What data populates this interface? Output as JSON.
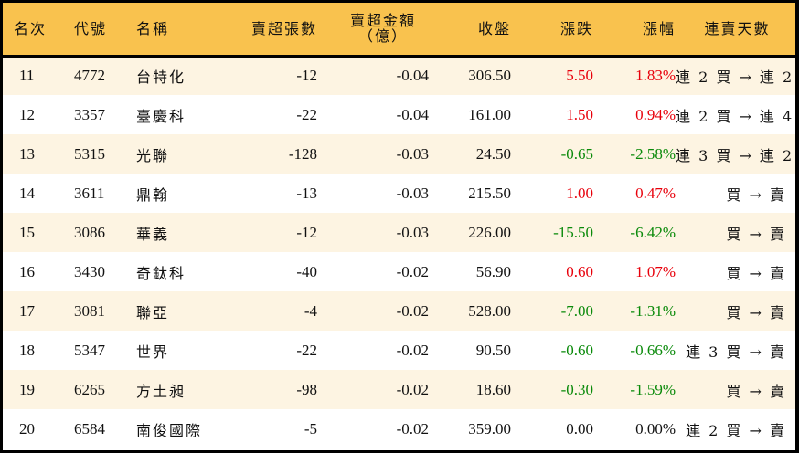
{
  "table": {
    "headers": {
      "rank": "名次",
      "code": "代號",
      "name": "名稱",
      "sell_volume": "賣超張數",
      "sell_amount_line1": "賣超金額",
      "sell_amount_line2": "（億）",
      "close": "收盤",
      "change": "漲跌",
      "change_pct": "漲幅",
      "streak": "連賣天數"
    },
    "colors": {
      "header_bg": "#F9C24E",
      "row_alt_bg": "#FDF4E2",
      "row_bg": "#FFFFFF",
      "up": "#E8000B",
      "down": "#0A8A0A",
      "border": "#000000"
    },
    "rows": [
      {
        "rank": "11",
        "code": "4772",
        "name": "台特化",
        "sell_volume": "-12",
        "sell_amount": "-0.04",
        "close": "306.50",
        "change": "5.50",
        "change_pct": "1.83%",
        "direction": "up",
        "streak": "連 2 買 → 連 2 賣"
      },
      {
        "rank": "12",
        "code": "3357",
        "name": "臺慶科",
        "sell_volume": "-22",
        "sell_amount": "-0.04",
        "close": "161.00",
        "change": "1.50",
        "change_pct": "0.94%",
        "direction": "up",
        "streak": "連 2 買 → 連 4 賣"
      },
      {
        "rank": "13",
        "code": "5315",
        "name": "光聯",
        "sell_volume": "-128",
        "sell_amount": "-0.03",
        "close": "24.50",
        "change": "-0.65",
        "change_pct": "-2.58%",
        "direction": "down",
        "streak": "連 3 買 → 連 2 賣"
      },
      {
        "rank": "14",
        "code": "3611",
        "name": "鼎翰",
        "sell_volume": "-13",
        "sell_amount": "-0.03",
        "close": "215.50",
        "change": "1.00",
        "change_pct": "0.47%",
        "direction": "up",
        "streak": "買 → 賣"
      },
      {
        "rank": "15",
        "code": "3086",
        "name": "華義",
        "sell_volume": "-12",
        "sell_amount": "-0.03",
        "close": "226.00",
        "change": "-15.50",
        "change_pct": "-6.42%",
        "direction": "down",
        "streak": "買 → 賣"
      },
      {
        "rank": "16",
        "code": "3430",
        "name": "奇鈦科",
        "sell_volume": "-40",
        "sell_amount": "-0.02",
        "close": "56.90",
        "change": "0.60",
        "change_pct": "1.07%",
        "direction": "up",
        "streak": "買 → 賣"
      },
      {
        "rank": "17",
        "code": "3081",
        "name": "聯亞",
        "sell_volume": "-4",
        "sell_amount": "-0.02",
        "close": "528.00",
        "change": "-7.00",
        "change_pct": "-1.31%",
        "direction": "down",
        "streak": "買 → 賣"
      },
      {
        "rank": "18",
        "code": "5347",
        "name": "世界",
        "sell_volume": "-22",
        "sell_amount": "-0.02",
        "close": "90.50",
        "change": "-0.60",
        "change_pct": "-0.66%",
        "direction": "down",
        "streak": "連 3 買 → 賣"
      },
      {
        "rank": "19",
        "code": "6265",
        "name": "方土昶",
        "sell_volume": "-98",
        "sell_amount": "-0.02",
        "close": "18.60",
        "change": "-0.30",
        "change_pct": "-1.59%",
        "direction": "down",
        "streak": "買 → 賣"
      },
      {
        "rank": "20",
        "code": "6584",
        "name": "南俊國際",
        "sell_volume": "-5",
        "sell_amount": "-0.02",
        "close": "359.00",
        "change": "0.00",
        "change_pct": "0.00%",
        "direction": "flat",
        "streak": "連 2 買 → 賣"
      }
    ]
  }
}
